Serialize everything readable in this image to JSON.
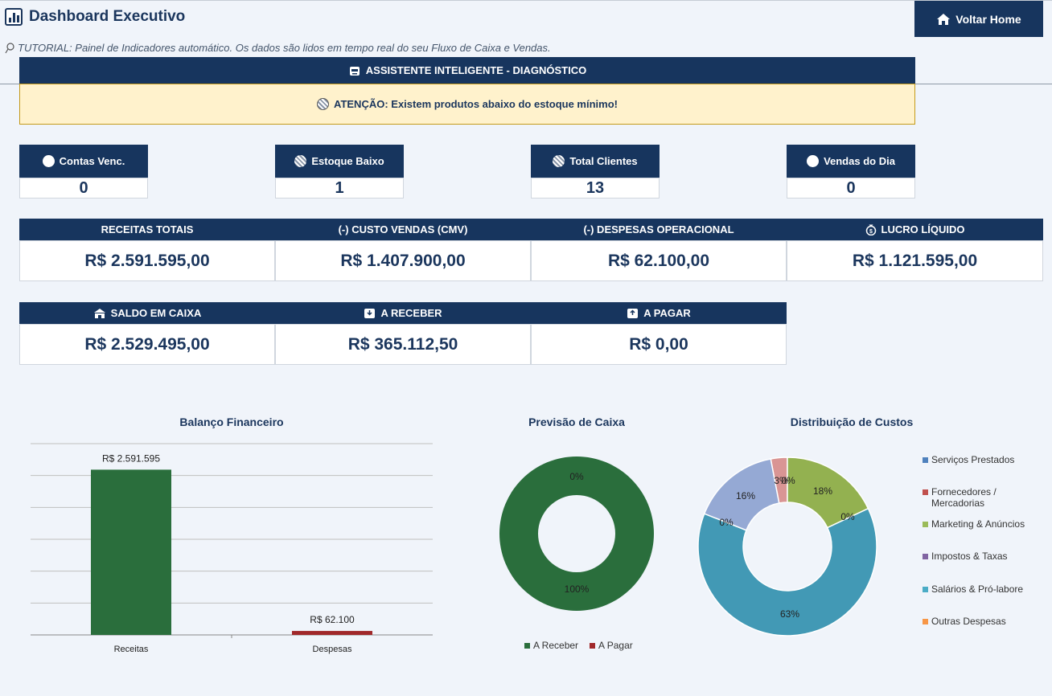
{
  "header": {
    "title": "Dashboard Executivo",
    "home_button": "Voltar Home"
  },
  "tutorial": "TUTORIAL: Painel de Indicadores automático. Os dados são lidos em tempo real do seu Fluxo de Caixa e Vendas.",
  "assistant": {
    "title": "ASSISTENTE INTELIGENTE - DIAGNÓSTICO",
    "message": "ATENÇÃO: Existem produtos abaixo do estoque mínimo!"
  },
  "kpis": [
    {
      "label": "Contas Venc.",
      "value": "0"
    },
    {
      "label": "Estoque Baixo",
      "value": "1"
    },
    {
      "label": "Total Clientes",
      "value": "13"
    },
    {
      "label": "Vendas do Dia",
      "value": "0"
    }
  ],
  "finance": [
    {
      "label": "RECEITAS TOTAIS",
      "value": "R$ 2.591.595,00"
    },
    {
      "label": "(-) CUSTO VENDAS (CMV)",
      "value": "R$ 1.407.900,00"
    },
    {
      "label": "(-) DESPESAS OPERACIONAL",
      "value": "R$ 62.100,00"
    },
    {
      "label": "LUCRO LÍQUIDO",
      "value": "R$ 1.121.595,00"
    }
  ],
  "cash": [
    {
      "label": "SALDO EM CAIXA",
      "value": "R$ 2.529.495,00"
    },
    {
      "label": "A RECEBER",
      "value": "R$ 365.112,50"
    },
    {
      "label": "A PAGAR",
      "value": "R$ 0,00"
    }
  ],
  "colors": {
    "navy": "#17355e",
    "green": "#2a6e3c",
    "red": "#a0282a",
    "alert_bg": "#fff2cc"
  },
  "chart_data": [
    {
      "type": "bar",
      "title": "Balanço Financeiro",
      "categories": [
        "Receitas",
        "Despesas"
      ],
      "values": [
        2591595,
        62100
      ],
      "data_labels": [
        "R$ 2.591.595",
        "R$ 62.100"
      ],
      "colors": [
        "#2a6e3c",
        "#a0282a"
      ],
      "ylim": [
        0,
        3000000
      ],
      "grid": true
    },
    {
      "type": "pie",
      "title": "Previsão de Caixa",
      "categories": [
        "A Receber",
        "A Pagar"
      ],
      "values": [
        100,
        0
      ],
      "data_labels": [
        "100%",
        "0%"
      ],
      "colors": [
        "#2a6e3c",
        "#a0282a"
      ],
      "legend": "bottom"
    },
    {
      "type": "pie",
      "title": "Distribuição de Custos",
      "categories": [
        "Serviços Prestados",
        "Fornecedores / Mercadorias",
        "Marketing & Anúncios",
        "Impostos & Taxas",
        "Salários & Pró-labore",
        "Outras Despesas"
      ],
      "values": [
        0,
        3,
        18,
        0,
        63,
        16
      ],
      "data_labels": [
        "0%",
        "3%",
        "18%",
        "0%",
        "63%",
        "16%"
      ],
      "colors": [
        "#4f81bd",
        "#c0504d",
        "#9bbb59",
        "#8064a2",
        "#4bacc6",
        "#f79646"
      ],
      "slice_colors": [
        "#d99594",
        "#93b150",
        "#4299b5",
        "#95a9d4"
      ],
      "legend": "right"
    }
  ]
}
